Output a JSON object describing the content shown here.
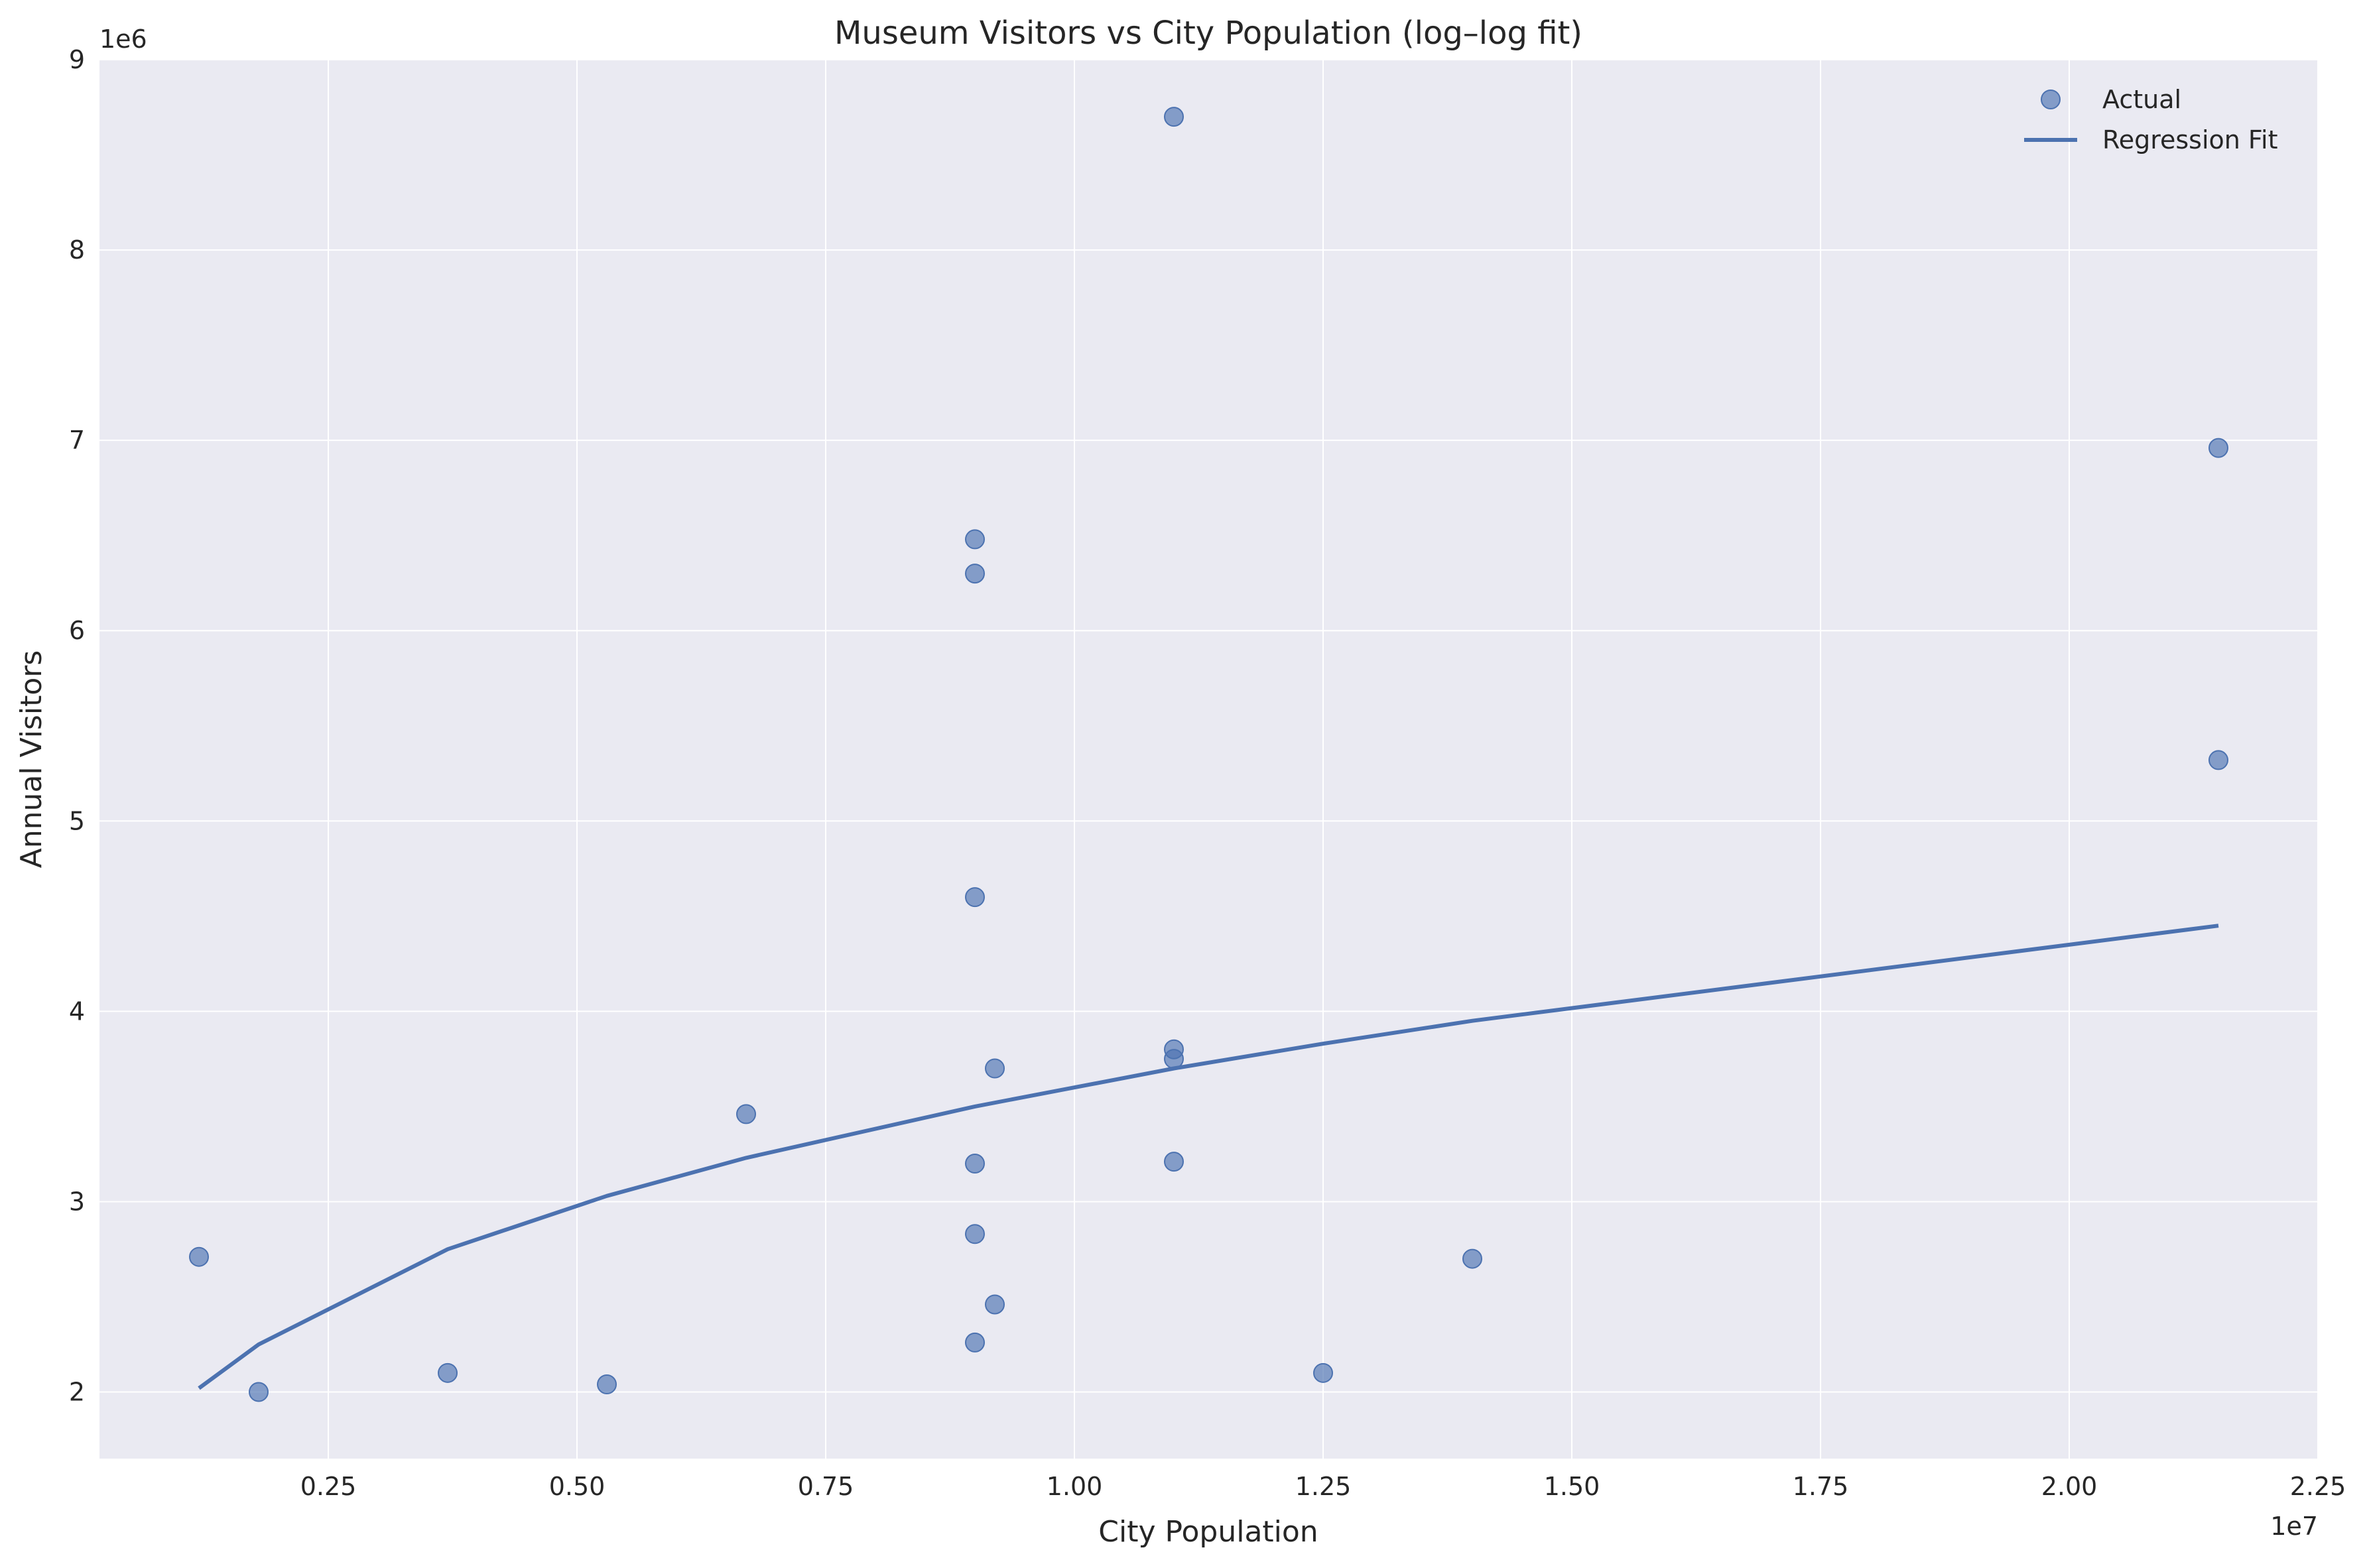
{
  "chart_data": {
    "type": "scatter",
    "title": "Museum Visitors vs City Population (log–log fit)",
    "xlabel": "City Population",
    "ylabel": "Annual Visitors",
    "x_offset_label": "1e7",
    "y_offset_label": "1e6",
    "xlim": [
      200000,
      22500000
    ],
    "ylim": [
      1650000,
      9000000
    ],
    "x_ticks": [
      2500000,
      5000000,
      7500000,
      10000000,
      12500000,
      15000000,
      17500000,
      20000000,
      22500000
    ],
    "x_tick_labels": [
      "0.25",
      "0.50",
      "0.75",
      "1.00",
      "1.25",
      "1.50",
      "1.75",
      "2.00",
      "2.25"
    ],
    "y_ticks": [
      2000000,
      3000000,
      4000000,
      5000000,
      6000000,
      7000000,
      8000000,
      9000000
    ],
    "y_tick_labels": [
      "2",
      "3",
      "4",
      "5",
      "6",
      "7",
      "8",
      "9"
    ],
    "grid": true,
    "legend_position": "top-right",
    "colors": {
      "points": "#4c72b0",
      "line": "#4c72b0",
      "background": "#eaeaf2",
      "grid": "#ffffff"
    },
    "series": [
      {
        "name": "Actual",
        "type": "scatter",
        "points": [
          {
            "x": 11000000,
            "y": 8700000
          },
          {
            "x": 21500000,
            "y": 6960000
          },
          {
            "x": 9000000,
            "y": 6480000
          },
          {
            "x": 9000000,
            "y": 6300000
          },
          {
            "x": 21500000,
            "y": 5320000
          },
          {
            "x": 9000000,
            "y": 4600000
          },
          {
            "x": 11000000,
            "y": 3800000
          },
          {
            "x": 11000000,
            "y": 3750000
          },
          {
            "x": 9200000,
            "y": 3700000
          },
          {
            "x": 6700000,
            "y": 3460000
          },
          {
            "x": 9000000,
            "y": 3200000
          },
          {
            "x": 11000000,
            "y": 3210000
          },
          {
            "x": 9000000,
            "y": 2830000
          },
          {
            "x": 1200000,
            "y": 2710000
          },
          {
            "x": 14000000,
            "y": 2700000
          },
          {
            "x": 9200000,
            "y": 2460000
          },
          {
            "x": 9000000,
            "y": 2260000
          },
          {
            "x": 3700000,
            "y": 2100000
          },
          {
            "x": 12500000,
            "y": 2100000
          },
          {
            "x": 5300000,
            "y": 2040000
          },
          {
            "x": 1800000,
            "y": 2000000
          }
        ]
      },
      {
        "name": "Regression Fit",
        "type": "line",
        "points": [
          {
            "x": 1200000,
            "y": 2020000
          },
          {
            "x": 1800000,
            "y": 2250000
          },
          {
            "x": 3700000,
            "y": 2750000
          },
          {
            "x": 5300000,
            "y": 3030000
          },
          {
            "x": 6700000,
            "y": 3230000
          },
          {
            "x": 9000000,
            "y": 3500000
          },
          {
            "x": 11000000,
            "y": 3700000
          },
          {
            "x": 12500000,
            "y": 3830000
          },
          {
            "x": 14000000,
            "y": 3950000
          },
          {
            "x": 21500000,
            "y": 4450000
          }
        ]
      }
    ]
  }
}
